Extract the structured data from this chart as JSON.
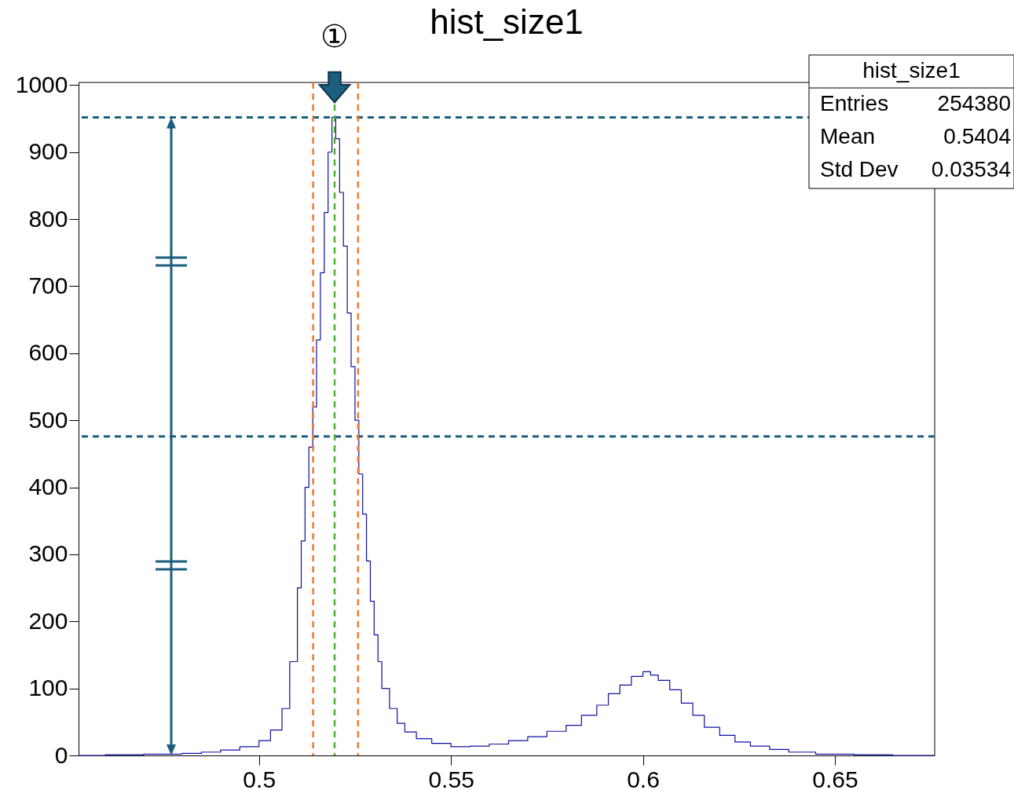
{
  "chart_data": {
    "type": "histogram",
    "title": "hist_size1",
    "bins": [
      0.453,
      0.46,
      0.47,
      0.48,
      0.485,
      0.49,
      0.495,
      0.5,
      0.503,
      0.506,
      0.508,
      0.51,
      0.511,
      0.512,
      0.513,
      0.514,
      0.515,
      0.516,
      0.517,
      0.518,
      0.519,
      0.52,
      0.521,
      0.522,
      0.523,
      0.524,
      0.525,
      0.526,
      0.527,
      0.528,
      0.529,
      0.53,
      0.531,
      0.532,
      0.534,
      0.536,
      0.538,
      0.541,
      0.545,
      0.55,
      0.555,
      0.56,
      0.565,
      0.57,
      0.575,
      0.58,
      0.584,
      0.588,
      0.591,
      0.594,
      0.597,
      0.6,
      0.602,
      0.604,
      0.607,
      0.61,
      0.613,
      0.616,
      0.62,
      0.624,
      0.628,
      0.633,
      0.638,
      0.645,
      0.655,
      0.665,
      0.676
    ],
    "values": [
      0,
      1,
      2,
      3,
      5,
      8,
      13,
      22,
      38,
      70,
      140,
      250,
      320,
      400,
      460,
      520,
      620,
      720,
      810,
      900,
      952,
      920,
      840,
      760,
      660,
      580,
      500,
      420,
      360,
      290,
      230,
      180,
      140,
      100,
      70,
      48,
      35,
      25,
      18,
      13,
      14,
      17,
      22,
      28,
      36,
      45,
      60,
      75,
      92,
      105,
      118,
      125,
      120,
      112,
      98,
      78,
      60,
      42,
      30,
      20,
      14,
      9,
      5,
      2,
      1,
      0
    ],
    "color": "#1010a0",
    "xlim": [
      0.453,
      0.676
    ],
    "ylim": [
      0,
      1004
    ],
    "xticks": [
      0.5,
      0.55,
      0.6,
      0.65
    ],
    "yticks": [
      0,
      100,
      200,
      300,
      400,
      500,
      600,
      700,
      800,
      900,
      1000
    ],
    "grid": false,
    "ref_lines": [
      {
        "axis": "y",
        "value": 952,
        "color": "#1b5e7e",
        "line_style": "dashed"
      },
      {
        "axis": "y",
        "value": 476,
        "color": "#1b5e7e",
        "line_style": "dashed"
      },
      {
        "axis": "x",
        "value": 0.5141,
        "color": "#f07a30",
        "line_style": "dashed"
      },
      {
        "axis": "x",
        "value": 0.5258,
        "color": "#f07a30",
        "line_style": "dashed"
      },
      {
        "axis": "x",
        "value": 0.5197,
        "color": "#50b030",
        "line_style": "dashed"
      }
    ],
    "annotations": [
      "①",
      "hist_size1",
      "Entries 254380",
      "Mean 0.5404",
      "Std Dev 0.03534"
    ]
  }
}
